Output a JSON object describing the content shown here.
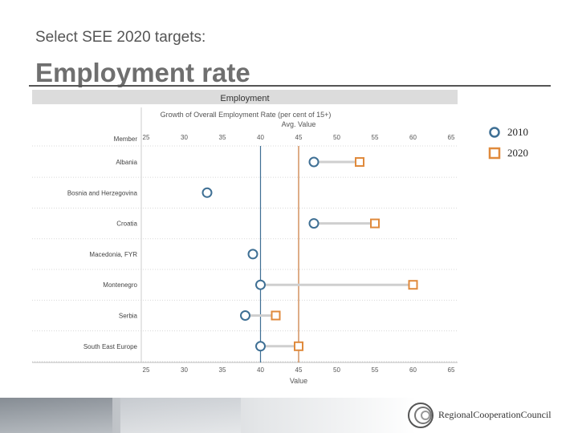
{
  "slide": {
    "supertitle": "Select SEE 2020 targets:",
    "title": "Employment rate",
    "footer_org": "RegionalCooperationCouncil"
  },
  "legend": [
    {
      "label": "2010",
      "color": "#3e6f94",
      "shape": "circle"
    },
    {
      "label": "2020",
      "color": "#e08a3c",
      "shape": "square"
    }
  ],
  "chart_data": {
    "type": "scatter",
    "title": "Employment",
    "subtitle": "Growth of Overall Employment Rate (per cent of 15+)",
    "top_axis_label": "Avg. Value",
    "xlabel": "Value",
    "row_header": "Member",
    "xlim": [
      25,
      65
    ],
    "xticks": [
      25,
      30,
      35,
      40,
      45,
      50,
      55,
      60,
      65
    ],
    "categories": [
      "Albania",
      "Bosnia and Herzegovina",
      "Croatia",
      "Macedonia, FYR",
      "Montenegro",
      "Serbia",
      "South East Europe"
    ],
    "series": [
      {
        "name": "2010",
        "color": "#3e6f94",
        "values": [
          47,
          33,
          47,
          39,
          40,
          38,
          40
        ]
      },
      {
        "name": "2020",
        "color": "#e08a3c",
        "values": [
          53,
          null,
          55,
          null,
          60,
          42,
          45
        ]
      }
    ],
    "reference_lines": [
      {
        "value": 40,
        "color": "#3e6f94"
      },
      {
        "value": 45,
        "color": "#c8773a"
      }
    ],
    "grid": false
  },
  "colors": {
    "series_2010": "#3e6f94",
    "series_2020": "#e08a3c",
    "connector": "#cfcfcf",
    "title_band": "#dcdcdc"
  }
}
